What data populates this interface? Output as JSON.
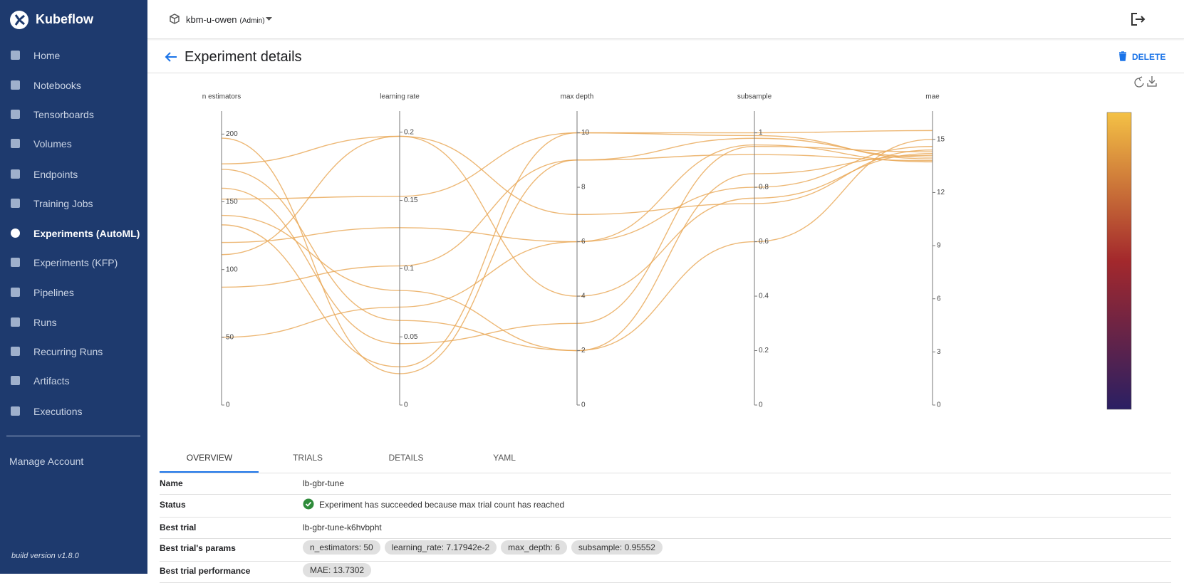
{
  "sidebar": {
    "brand": "Kubeflow",
    "items": [
      "Home",
      "Notebooks",
      "Tensorboards",
      "Volumes",
      "Endpoints",
      "Training Jobs",
      "Experiments (AutoML)",
      "Experiments (KFP)",
      "Pipelines",
      "Runs",
      "Recurring Runs",
      "Artifacts",
      "Executions"
    ],
    "active": 6,
    "manage": "Manage Account",
    "build": "build version v1.8.0"
  },
  "header": {
    "namespace": "kbm-u-owen",
    "role": "(Admin)"
  },
  "page": {
    "title": "Experiment details",
    "delete": "DELETE"
  },
  "chart_data": {
    "type": "parallel",
    "color": "#e9a654",
    "colorscale": [
      "#2a1f63",
      "#a3282c",
      "#f4c145"
    ],
    "dimensions": [
      {
        "label": "n estimators",
        "range": [
          0,
          217
        ],
        "ticks": [
          0,
          50,
          100,
          150,
          200
        ]
      },
      {
        "label": "learning rate",
        "range": [
          0,
          0.2155
        ],
        "ticks": [
          0,
          0.05,
          0.1,
          0.15,
          0.2
        ]
      },
      {
        "label": "max depth",
        "range": [
          0,
          10.8
        ],
        "ticks": [
          0,
          2,
          4,
          6,
          8,
          10
        ]
      },
      {
        "label": "subsample",
        "range": [
          0,
          1.08
        ],
        "ticks": [
          0,
          0.2,
          0.4,
          0.6,
          0.8,
          1
        ]
      },
      {
        "label": "mae",
        "range": [
          0,
          16.6
        ],
        "ticks": [
          0,
          3,
          6,
          9,
          12,
          15
        ]
      }
    ],
    "lines": [
      [
        50,
        0.0718,
        6,
        0.9555,
        13.73
      ],
      [
        87,
        0.102,
        9,
        0.98,
        14.0
      ],
      [
        111,
        0.197,
        4,
        0.76,
        14.2
      ],
      [
        133,
        0.028,
        10,
        0.99,
        13.9
      ],
      [
        152,
        0.153,
        10,
        1.0,
        15.5
      ],
      [
        174,
        0.062,
        2,
        0.85,
        14.1
      ],
      [
        178,
        0.197,
        7,
        0.74,
        14.4
      ],
      [
        197,
        0.023,
        9,
        0.92,
        13.8
      ],
      [
        140,
        0.084,
        2,
        0.6,
        15.0
      ],
      [
        160,
        0.045,
        3,
        0.95,
        14.3
      ],
      [
        120,
        0.13,
        6,
        0.8,
        14.6
      ]
    ]
  },
  "tabs": [
    "OVERVIEW",
    "TRIALS",
    "DETAILS",
    "YAML"
  ],
  "table": {
    "rows": [
      [
        "Name",
        "lb-gbr-tune"
      ],
      [
        "Status",
        "Experiment has succeeded because max trial count has reached"
      ],
      [
        "Best trial",
        "lb-gbr-tune-k6hvbpht"
      ],
      [
        "Best trial's params",
        [
          "n_estimators: 50",
          "learning_rate: 7.17942e-2",
          "max_depth: 6",
          "subsample: 0.95552"
        ]
      ],
      [
        "Best trial performance",
        [
          "MAE: 13.7302"
        ]
      ]
    ]
  }
}
